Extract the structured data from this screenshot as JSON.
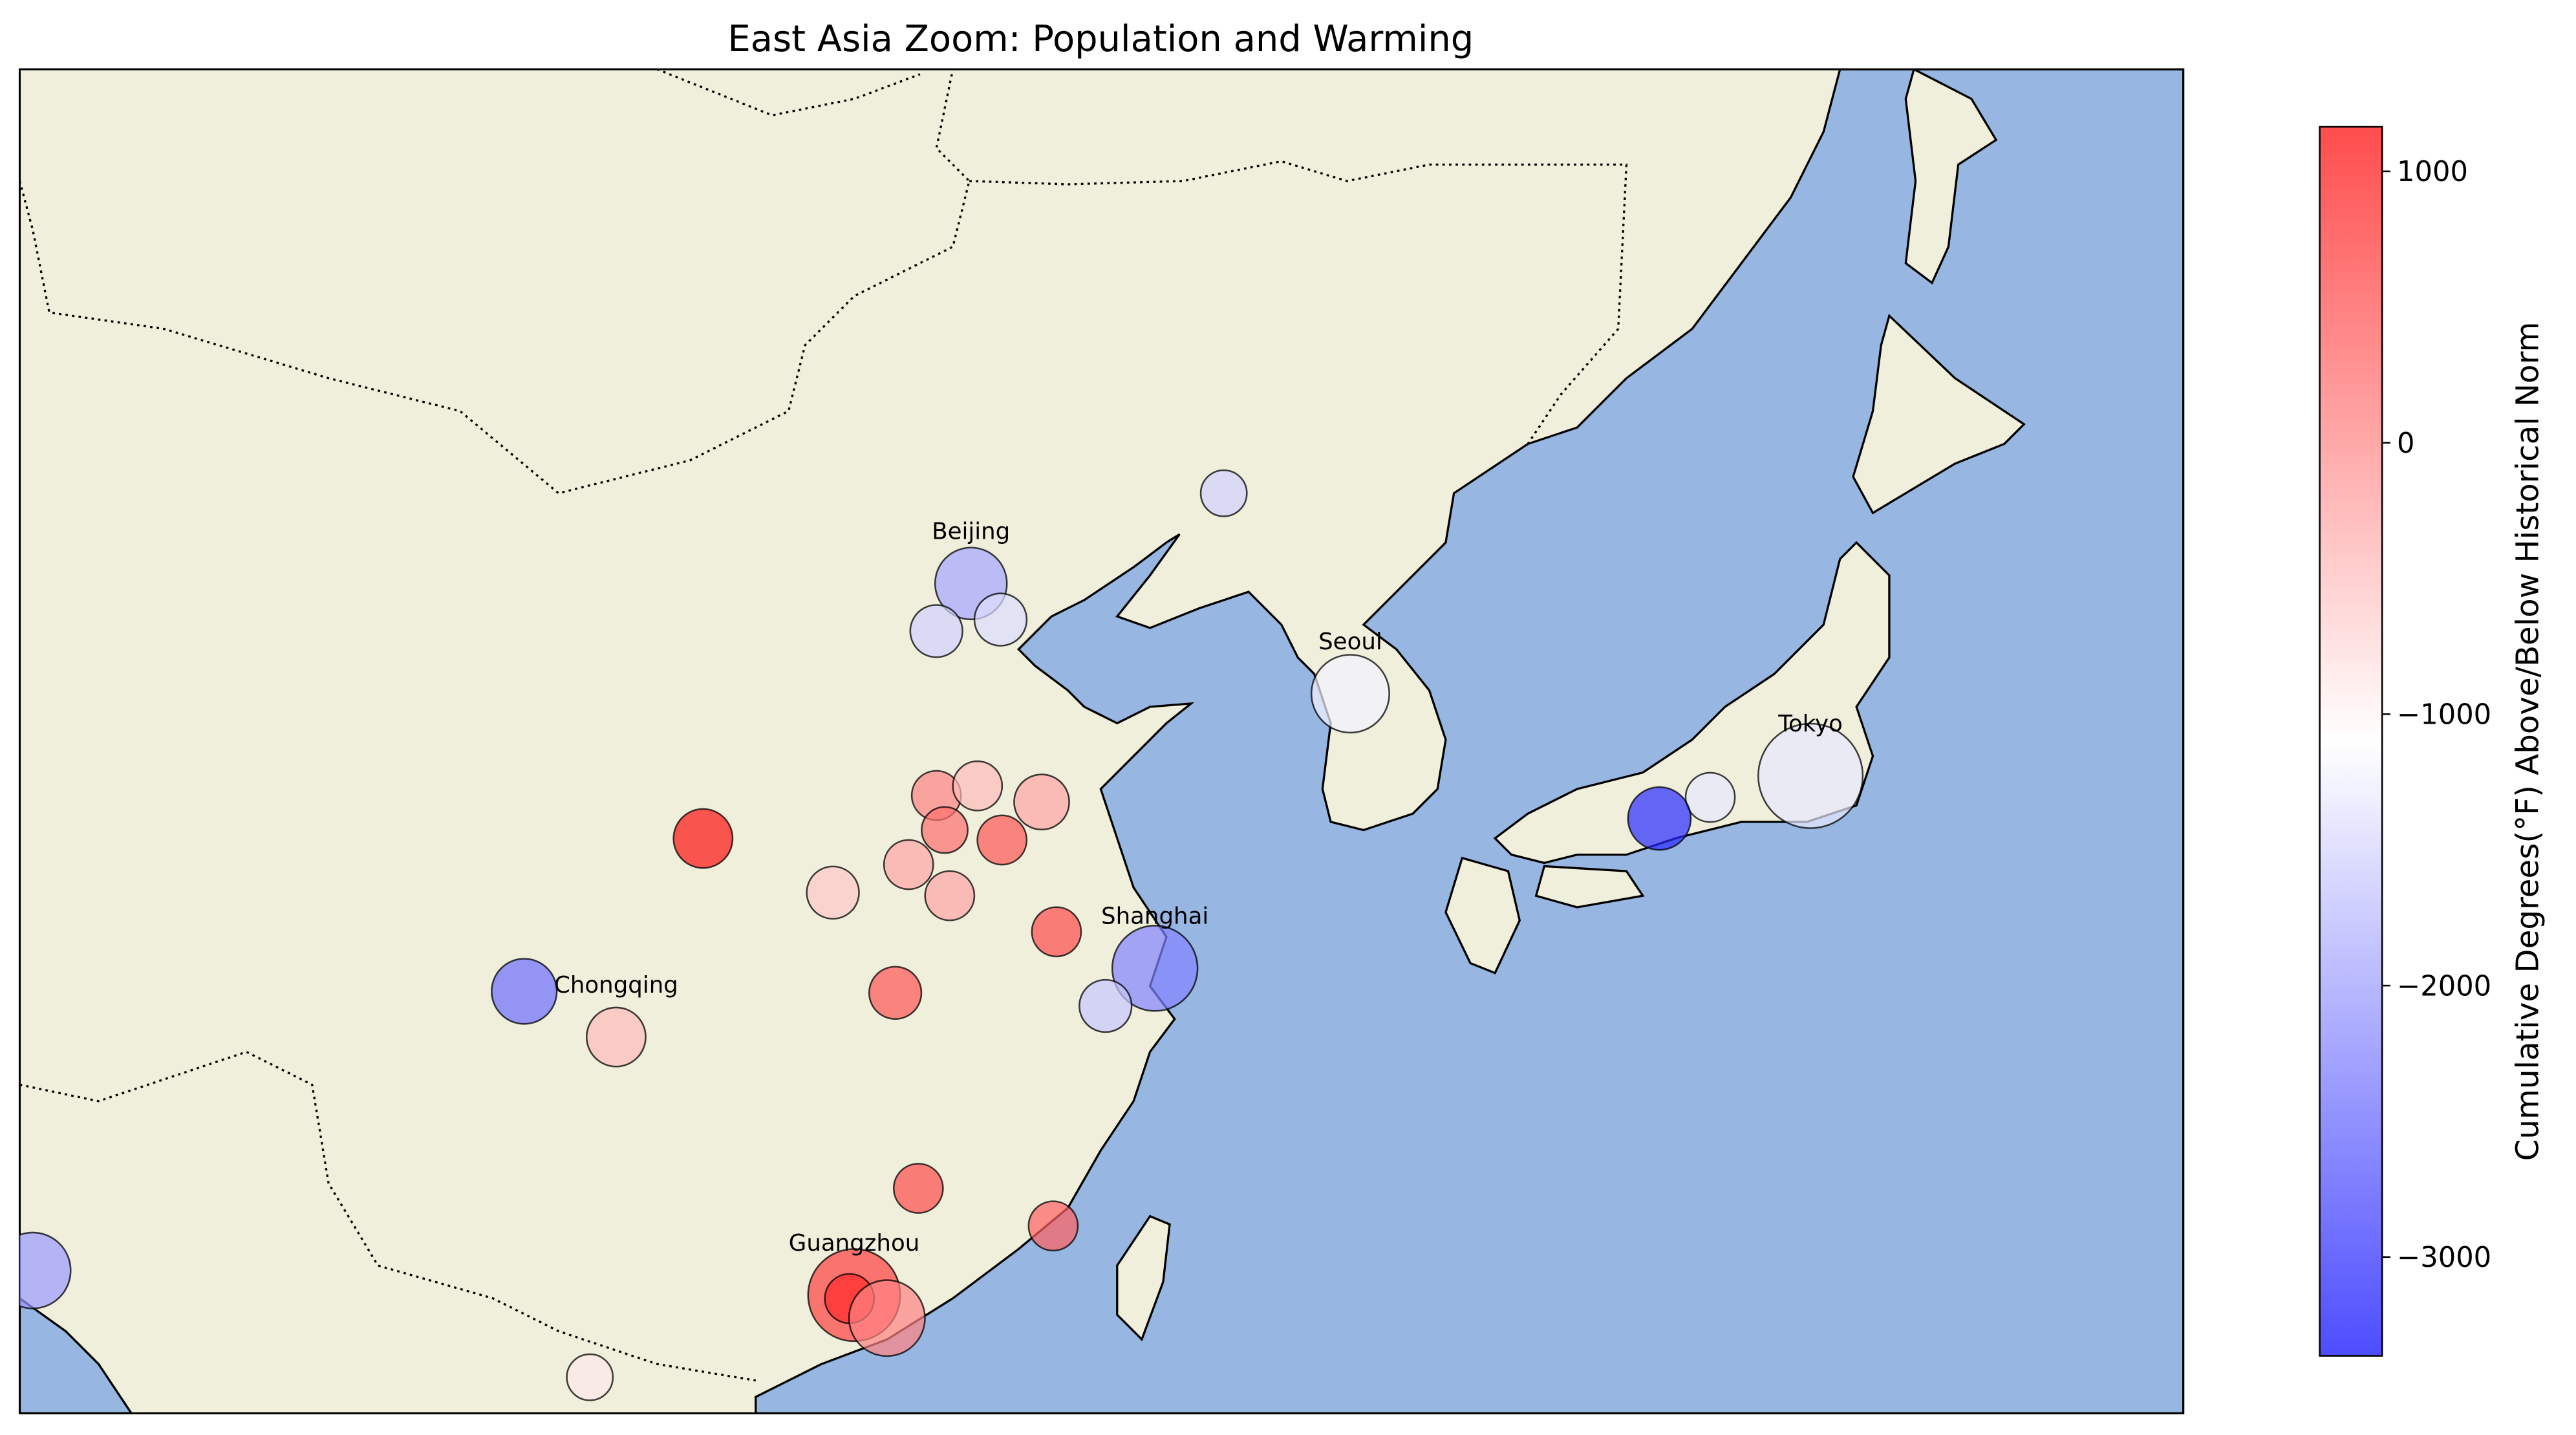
{
  "chart_data": {
    "type": "scatter",
    "title": "East Asia Zoom: Population and Warming",
    "xlim": [
      90,
      150
    ],
    "ylim": [
      20,
      55
    ],
    "lon": [
      116.38,
      115.42,
      117.2,
      123.39,
      126.9,
      139.66,
      136.88,
      135.47,
      108.95,
      115.42,
      116.56,
      118.34,
      115.65,
      117.24,
      114.65,
      112.55,
      115.79,
      118.75,
      121.48,
      120.11,
      114.28,
      103.99,
      106.54,
      114.92,
      118.66,
      113.14,
      113.01,
      114.05,
      105.81,
      90.36
    ],
    "lat": [
      41.61,
      40.37,
      40.67,
      43.96,
      38.74,
      36.6,
      36.04,
      35.49,
      34.97,
      36.09,
      36.34,
      35.92,
      35.19,
      34.93,
      34.29,
      33.56,
      33.48,
      32.54,
      31.59,
      30.61,
      30.95,
      30.99,
      29.8,
      25.86,
      24.88,
      23.08,
      22.99,
      22.48,
      20.94,
      23.72
    ],
    "sizes": [
      17,
      9,
      9,
      7,
      20,
      36,
      8,
      13,
      11.5,
      8,
      8,
      10,
      7,
      8,
      8,
      9,
      8,
      8,
      24,
      9,
      9,
      14,
      11.5,
      8,
      8,
      28,
      8,
      19,
      7,
      19
    ],
    "values": [
      -1900,
      -1500,
      -1400,
      -1500,
      -1200,
      -1300,
      -1300,
      -3000,
      1000,
      0,
      -500,
      -300,
      200,
      400,
      -300,
      -600,
      -300,
      500,
      -2200,
      -1600,
      400,
      -2400,
      -500,
      500,
      300,
      600,
      800,
      0,
      -900,
      -2000
    ],
    "labels": [
      "Beijing",
      null,
      null,
      null,
      "Seoul",
      "Tokyo",
      null,
      null,
      null,
      null,
      null,
      null,
      null,
      null,
      null,
      null,
      null,
      null,
      "Shanghai",
      null,
      null,
      null,
      "Chongqing",
      null,
      null,
      "Guangzhou",
      null,
      null,
      null,
      null
    ],
    "colorbar": {
      "label": "Cumulative Degrees(°F) Above/Below Historical Norm",
      "cmap": "bwr",
      "clim": [
        -3364,
        1164
      ],
      "ticks": [
        1000,
        0,
        {
          "value": -1000,
          "label": "−1000"
        },
        {
          "value": -2000,
          "label": "−2000"
        },
        {
          "value": -3000,
          "label": "−3000"
        }
      ]
    }
  }
}
